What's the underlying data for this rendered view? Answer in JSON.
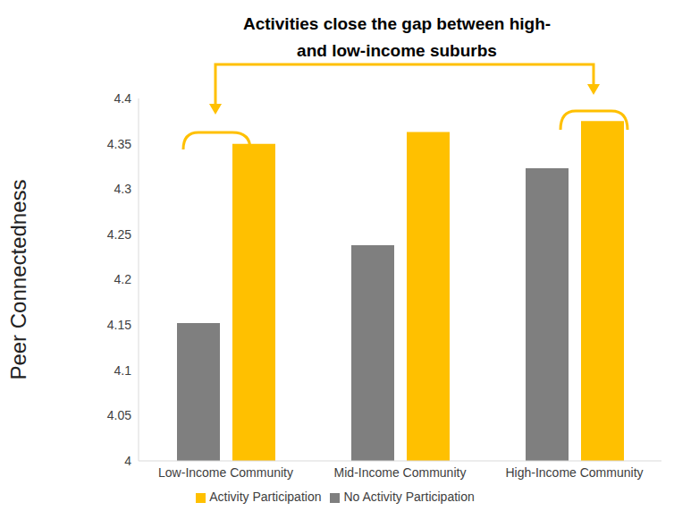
{
  "chart_data": {
    "type": "bar",
    "annotations": [
      "Activities close the gap between high-",
      "and low-income suburbs"
    ],
    "y_label": "Peer Connectedness",
    "categories": [
      "Low-Income Community",
      "Mid-Income Community",
      "High-Income Community"
    ],
    "series": [
      {
        "name": "No Activity Participation",
        "color": "#7f7f7f",
        "values": [
          4.152,
          4.238,
          4.323
        ]
      },
      {
        "name": "Activity Participation",
        "color": "#ffc000",
        "values": [
          4.35,
          4.363,
          4.375
        ]
      }
    ],
    "ylim": [
      4,
      4.4
    ],
    "yticks": [
      4,
      4.05,
      4.1,
      4.15,
      4.2,
      4.25,
      4.3,
      4.35,
      4.4
    ],
    "grid": false,
    "legend": "bottom"
  }
}
